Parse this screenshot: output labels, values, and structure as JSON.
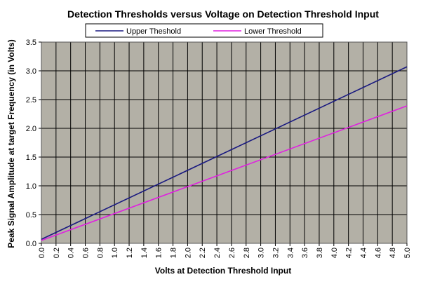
{
  "chart_data": {
    "type": "line",
    "title": "Detection Thresholds versus Voltage on Detection Threshold Input",
    "xlabel": "Volts at Detection Threshold Input",
    "ylabel": "Peak Signal Amplitude at target Frequency (in Volts)",
    "xlim": [
      0.0,
      5.0
    ],
    "ylim": [
      0.0,
      3.5
    ],
    "x_ticks": [
      "0.0",
      "0.2",
      "0.4",
      "0.6",
      "0.8",
      "1.0",
      "1.2",
      "1.4",
      "1.6",
      "1.8",
      "2.0",
      "2.2",
      "2.4",
      "2.6",
      "2.8",
      "3.0",
      "3.2",
      "3.4",
      "3.6",
      "3.8",
      "4.0",
      "4.2",
      "4.4",
      "4.6",
      "4.8",
      "5.0"
    ],
    "y_ticks": [
      "0.0",
      "0.5",
      "1.0",
      "1.5",
      "2.0",
      "2.5",
      "3.0",
      "3.5"
    ],
    "x_tick_values": [
      0.0,
      0.2,
      0.4,
      0.6,
      0.8,
      1.0,
      1.2,
      1.4,
      1.6,
      1.8,
      2.0,
      2.2,
      2.4,
      2.6,
      2.8,
      3.0,
      3.2,
      3.4,
      3.6,
      3.8,
      4.0,
      4.2,
      4.4,
      4.6,
      4.8,
      5.0
    ],
    "y_tick_values": [
      0.0,
      0.5,
      1.0,
      1.5,
      2.0,
      2.5,
      3.0,
      3.5
    ],
    "grid": true,
    "plot_background": "#b3b0a6",
    "legend_position": "top",
    "series": [
      {
        "name": "Upper Theshold",
        "color": "#1a1a80",
        "x": [
          0.0,
          5.0
        ],
        "y": [
          0.07,
          3.07
        ]
      },
      {
        "name": "Lower Threshold",
        "color": "#e020e0",
        "x": [
          0.0,
          5.0
        ],
        "y": [
          0.05,
          2.39
        ]
      }
    ]
  }
}
